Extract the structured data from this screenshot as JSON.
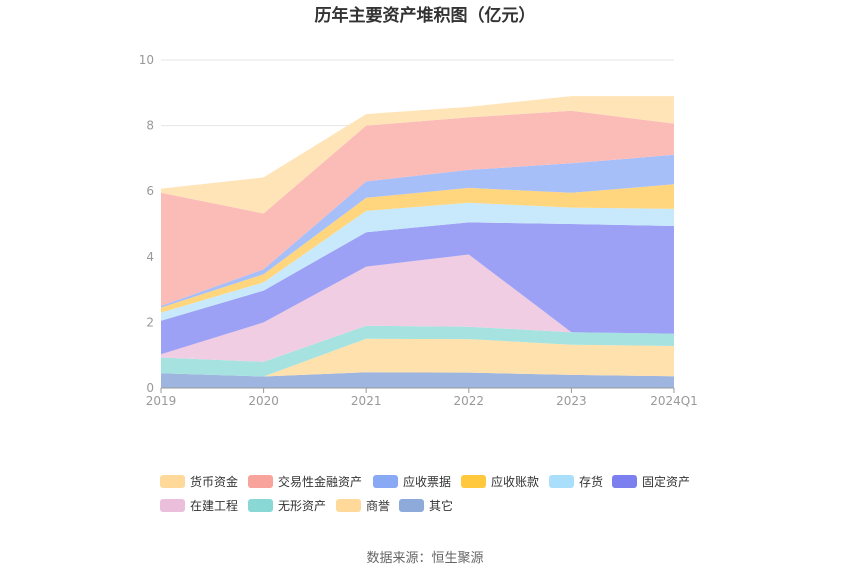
{
  "chart_data": {
    "type": "area",
    "stacked": true,
    "title": "历年主要资产堆积图（亿元）",
    "categories": [
      "2019",
      "2020",
      "2021",
      "2022",
      "2023",
      "2024Q1"
    ],
    "ylim": [
      0,
      10
    ],
    "yticks": [
      "0",
      "2",
      "4",
      "6",
      "8",
      "10"
    ],
    "grid": true,
    "legend_position": "bottom",
    "series": [
      {
        "name": "其它",
        "color": "#9db5df",
        "values": [
          0.45,
          0.35,
          0.48,
          0.47,
          0.4,
          0.36
        ]
      },
      {
        "name": "商誉",
        "color": "#ffe1ae",
        "values": [
          0.0,
          0.0,
          1.02,
          1.02,
          0.92,
          0.92
        ]
      },
      {
        "name": "无形资产",
        "color": "#a6e3e0",
        "values": [
          0.48,
          0.45,
          0.4,
          0.38,
          0.38,
          0.38
        ]
      },
      {
        "name": "在建工程",
        "color": "#f0cde2",
        "values": [
          0.1,
          1.2,
          1.8,
          2.2,
          0.0,
          0.0
        ]
      },
      {
        "name": "固定资产",
        "color": "#9ca1f6",
        "values": [
          1.02,
          0.97,
          1.05,
          0.98,
          3.3,
          3.28
        ]
      },
      {
        "name": "存货",
        "color": "#c7e9fb",
        "values": [
          0.25,
          0.25,
          0.65,
          0.6,
          0.5,
          0.52
        ]
      },
      {
        "name": "应收账款",
        "color": "#ffd67e",
        "values": [
          0.15,
          0.25,
          0.4,
          0.45,
          0.45,
          0.75
        ]
      },
      {
        "name": "应收票据",
        "color": "#a7bff9",
        "values": [
          0.05,
          0.15,
          0.5,
          0.55,
          0.9,
          0.9
        ]
      },
      {
        "name": "交易性金融资产",
        "color": "#fbbcb8",
        "values": [
          3.45,
          1.7,
          1.7,
          1.6,
          1.6,
          0.95
        ]
      },
      {
        "name": "货币资金",
        "color": "#ffe4b8",
        "values": [
          0.13,
          1.1,
          0.35,
          0.32,
          0.45,
          0.84
        ]
      }
    ],
    "legend": [
      {
        "name": "货币资金",
        "color": "#ffd99a"
      },
      {
        "name": "交易性金融资产",
        "color": "#f8a39c"
      },
      {
        "name": "应收票据",
        "color": "#8aa9f5"
      },
      {
        "name": "应收账款",
        "color": "#ffc83d"
      },
      {
        "name": "存货",
        "color": "#a9dffa"
      },
      {
        "name": "固定资产",
        "color": "#7b80ee"
      },
      {
        "name": "在建工程",
        "color": "#ebbfdb"
      },
      {
        "name": "无形资产",
        "color": "#8ad8d6"
      },
      {
        "name": "商誉",
        "color": "#ffd99a"
      },
      {
        "name": "其它",
        "color": "#8eaadb"
      }
    ]
  },
  "source": "数据来源：恒生聚源"
}
